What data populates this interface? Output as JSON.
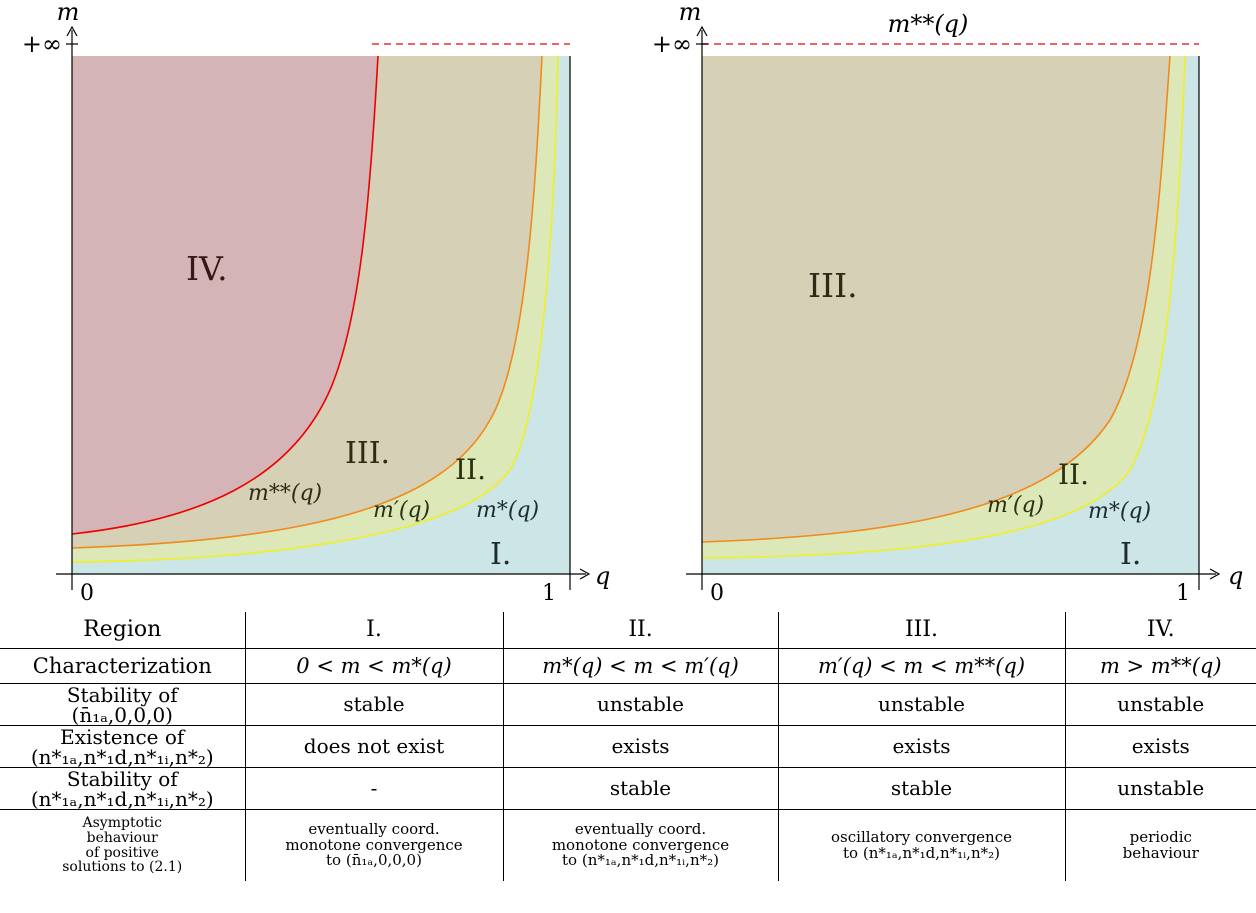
{
  "colors": {
    "region_I": "#cce5e7",
    "region_II": "#dde8b8",
    "region_III": "#d6d0b6",
    "region_IV": "#d4b4b7",
    "curve_m_star": "#eeee33",
    "curve_m_prime": "#f08a1c",
    "curve_m_2star": "#ee0000",
    "dashed_line": "#e83030"
  },
  "plot_left": {
    "y_axis_label": "m",
    "x_axis_label": "q",
    "y_top_tick": "+∞",
    "x_tick_0": "0",
    "x_tick_1": "1",
    "region_labels": {
      "I": "I.",
      "II": "II.",
      "III": "III.",
      "IV": "IV."
    },
    "curve_labels": {
      "m_star": "m*(q)",
      "m_prime": "m′(q)",
      "m_2star": "m**(q)"
    }
  },
  "plot_right": {
    "y_axis_label": "m",
    "x_axis_label": "q",
    "y_top_tick": "+∞",
    "x_tick_0": "0",
    "x_tick_1": "1",
    "top_label": "m**(q)",
    "region_labels": {
      "I": "I.",
      "II": "II.",
      "III": "III."
    },
    "curve_labels": {
      "m_star": "m*(q)",
      "m_prime": "m′(q)"
    }
  },
  "table": {
    "header": {
      "label": "Region",
      "I": "I.",
      "II": "II.",
      "III": "III.",
      "IV": "IV."
    },
    "characterization": {
      "label": "Characterization",
      "I": "0 < m < m*(q)",
      "II": "m*(q) < m < m′(q)",
      "III": "m′(q) < m < m**(q)",
      "IV": "m > m**(q)"
    },
    "stability_trivial": {
      "label_line1": "Stability of",
      "label_line2": "(n̄₁ₐ,0,0,0)",
      "I": "stable",
      "II": "unstable",
      "III": "unstable",
      "IV": "unstable"
    },
    "existence_positive": {
      "label_line1": "Existence of",
      "label_line2": "(n*₁ₐ,n*₁d,n*₁ᵢ,n*₂)",
      "I": "does not exist",
      "II": "exists",
      "III": "exists",
      "IV": "exists"
    },
    "stability_positive": {
      "label_line1": "Stability of",
      "label_line2": "(n*₁ₐ,n*₁d,n*₁ᵢ,n*₂)",
      "I": "-",
      "II": "stable",
      "III": "stable",
      "IV": "unstable"
    },
    "asymptotic": {
      "label_line1": "Asymptotic",
      "label_line2": "behaviour",
      "label_line3": "of positive",
      "label_line4": "solutions to (2.1)",
      "I_line1": "eventually coord.",
      "I_line2": "monotone convergence",
      "I_line3": "to (n̄₁ₐ,0,0,0)",
      "II_line1": "eventually coord.",
      "II_line2": "monotone convergence",
      "II_line3": "to (n*₁ₐ,n*₁d,n*₁ᵢ,n*₂)",
      "III_line1": "oscillatory convergence",
      "III_line2": "to (n*₁ₐ,n*₁d,n*₁ᵢ,n*₂)",
      "IV_line1": "periodic",
      "IV_line2": "behaviour"
    }
  }
}
